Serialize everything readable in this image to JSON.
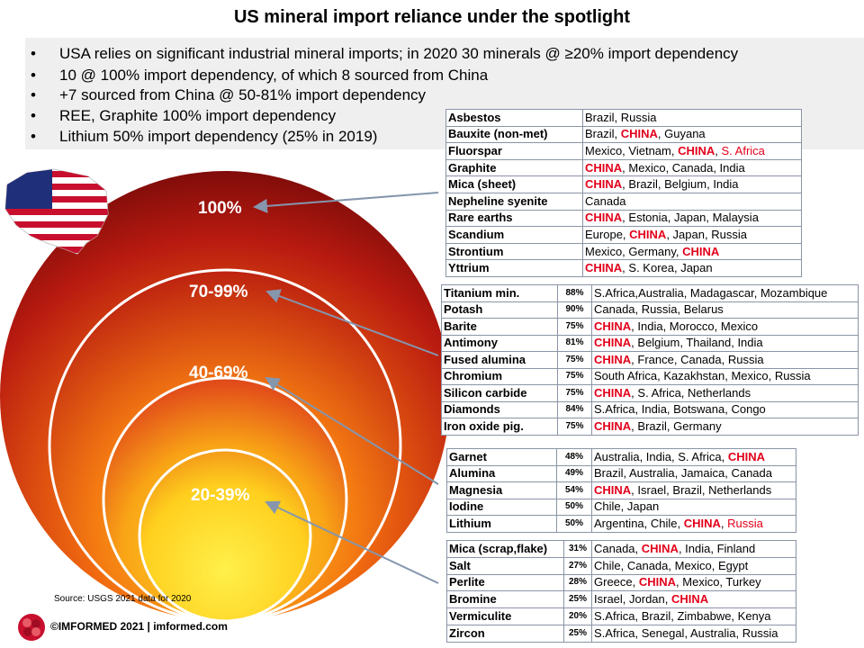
{
  "title": "US mineral import reliance under the spotlight",
  "bullets": [
    {
      "marker": "•",
      "text": "USA relies on significant industrial mineral imports; in 2020 30 minerals @ ≥20% import dependency"
    },
    {
      "marker": "•",
      "text": "10 @ 100% import dependency, of which 8 sourced from China"
    },
    {
      "marker": "•",
      "text": "+7 sourced from China @ 50-81% import dependency"
    },
    {
      "marker": "•",
      "text": "REE, Graphite 100% import dependency"
    },
    {
      "marker": "•",
      "text": "Lithium 50% import dependency (25% in 2019)"
    }
  ],
  "levels": [
    "100%",
    "70-99%",
    "40-69%",
    "20-39%"
  ],
  "colors": {
    "china_red": "#e2001a",
    "ring_outer": "#8a0a0a",
    "ring_inner": "#ffd21a",
    "table_border": "#8a94a6"
  },
  "tables": [
    {
      "rows": [
        {
          "name": "Asbestos",
          "sources": [
            {
              "t": "Brazil, Russia",
              "s": ""
            }
          ]
        },
        {
          "name": "Bauxite (non-met)",
          "sources": [
            {
              "t": "Brazil, ",
              "s": ""
            },
            {
              "t": "CHINA",
              "s": "cn"
            },
            {
              "t": ", Guyana",
              "s": ""
            }
          ]
        },
        {
          "name": "Fluorspar",
          "sources": [
            {
              "t": "Mexico, Vietnam, ",
              "s": ""
            },
            {
              "t": "CHINA",
              "s": "cn"
            },
            {
              "t": ", ",
              "s": ""
            },
            {
              "t": "S. Africa",
              "s": "rd"
            }
          ]
        },
        {
          "name": "Graphite",
          "sources": [
            {
              "t": "CHINA",
              "s": "cn"
            },
            {
              "t": ", Mexico, Canada, India",
              "s": ""
            }
          ]
        },
        {
          "name": "Mica (sheet)",
          "sources": [
            {
              "t": "CHINA",
              "s": "cn"
            },
            {
              "t": ", Brazil, Belgium, India",
              "s": ""
            }
          ]
        },
        {
          "name": "Nepheline syenite",
          "sources": [
            {
              "t": "Canada",
              "s": ""
            }
          ]
        },
        {
          "name": "Rare earths",
          "sources": [
            {
              "t": "CHINA",
              "s": "cn"
            },
            {
              "t": ", Estonia, Japan, Malaysia",
              "s": ""
            }
          ]
        },
        {
          "name": "Scandium",
          "sources": [
            {
              "t": "Europe, ",
              "s": ""
            },
            {
              "t": "CHINA",
              "s": "cn"
            },
            {
              "t": ", Japan, Russia",
              "s": ""
            }
          ]
        },
        {
          "name": "Strontium",
          "sources": [
            {
              "t": "Mexico, Germany, ",
              "s": ""
            },
            {
              "t": "CHINA",
              "s": "cn"
            }
          ]
        },
        {
          "name": "Yttrium",
          "sources": [
            {
              "t": "CHINA",
              "s": "cn"
            },
            {
              "t": ", S. Korea, Japan",
              "s": ""
            }
          ]
        }
      ]
    },
    {
      "rows": [
        {
          "name": "Titanium min.",
          "pct": "88%",
          "sources": [
            {
              "t": "S.Africa,Australia, Madagascar, Mozambique",
              "s": ""
            }
          ]
        },
        {
          "name": "Potash",
          "pct": "90%",
          "sources": [
            {
              "t": "Canada, Russia, Belarus",
              "s": ""
            }
          ]
        },
        {
          "name": "Barite",
          "pct": "75%",
          "sources": [
            {
              "t": "CHINA",
              "s": "cn"
            },
            {
              "t": ", India, Morocco, Mexico",
              "s": ""
            }
          ]
        },
        {
          "name": "Antimony",
          "pct": "81%",
          "sources": [
            {
              "t": "CHINA",
              "s": "cn"
            },
            {
              "t": ", Belgium, Thailand, India",
              "s": ""
            }
          ]
        },
        {
          "name": "Fused alumina",
          "pct": "75%",
          "sources": [
            {
              "t": "CHINA",
              "s": "cn"
            },
            {
              "t": ", France, Canada, Russia",
              "s": ""
            }
          ]
        },
        {
          "name": "Chromium",
          "pct": "75%",
          "sources": [
            {
              "t": "South Africa, Kazakhstan, Mexico, Russia",
              "s": ""
            }
          ]
        },
        {
          "name": "Silicon carbide",
          "pct": "75%",
          "sources": [
            {
              "t": "CHINA",
              "s": "cn"
            },
            {
              "t": ", S. Africa, Netherlands",
              "s": ""
            }
          ]
        },
        {
          "name": "Diamonds",
          "pct": "84%",
          "sources": [
            {
              "t": "S.Africa, India, Botswana, Congo",
              "s": ""
            }
          ]
        },
        {
          "name": "Iron oxide pig.",
          "pct": "75%",
          "sources": [
            {
              "t": "CHINA",
              "s": "cn"
            },
            {
              "t": ", Brazil, Germany",
              "s": ""
            }
          ]
        }
      ]
    },
    {
      "rows": [
        {
          "name": "Garnet",
          "pct": "48%",
          "sources": [
            {
              "t": "Australia, India, S. Africa, ",
              "s": ""
            },
            {
              "t": "CHINA",
              "s": "cn"
            }
          ]
        },
        {
          "name": "Alumina",
          "pct": "49%",
          "sources": [
            {
              "t": "Brazil, Australia, Jamaica, Canada",
              "s": ""
            }
          ]
        },
        {
          "name": "Magnesia",
          "pct": "54%",
          "sources": [
            {
              "t": "CHINA",
              "s": "cn"
            },
            {
              "t": ", Israel, Brazil, Netherlands",
              "s": ""
            }
          ]
        },
        {
          "name": "Iodine",
          "pct": "50%",
          "sources": [
            {
              "t": "Chile, Japan",
              "s": ""
            }
          ]
        },
        {
          "name": "Lithium",
          "pct": "50%",
          "sources": [
            {
              "t": "Argentina, Chile, ",
              "s": ""
            },
            {
              "t": "CHINA",
              "s": "cn"
            },
            {
              "t": ", ",
              "s": ""
            },
            {
              "t": "Russia",
              "s": "rd"
            }
          ]
        }
      ]
    },
    {
      "rows": [
        {
          "name": "Mica (scrap,flake)",
          "pct": "31%",
          "sources": [
            {
              "t": "Canada, ",
              "s": ""
            },
            {
              "t": "CHINA",
              "s": "cn"
            },
            {
              "t": ", India, Finland",
              "s": ""
            }
          ]
        },
        {
          "name": "Salt",
          "pct": "27%",
          "sources": [
            {
              "t": "Chile, Canada, Mexico, Egypt",
              "s": ""
            }
          ]
        },
        {
          "name": "Perlite",
          "pct": "28%",
          "sources": [
            {
              "t": "Greece, ",
              "s": ""
            },
            {
              "t": "CHINA",
              "s": "cn"
            },
            {
              "t": ", Mexico, Turkey",
              "s": ""
            }
          ]
        },
        {
          "name": "Bromine",
          "pct": "25%",
          "sources": [
            {
              "t": "Israel, Jordan, ",
              "s": ""
            },
            {
              "t": "CHINA",
              "s": "cn"
            }
          ]
        },
        {
          "name": "Vermiculite",
          "pct": "20%",
          "sources": [
            {
              "t": "S.Africa, Brazil, Zimbabwe, Kenya",
              "s": ""
            }
          ]
        },
        {
          "name": "Zircon",
          "pct": "25%",
          "sources": [
            {
              "t": "S.Africa, Senegal, Australia, Russia",
              "s": ""
            }
          ]
        }
      ]
    }
  ],
  "source_note": "Source: USGS 2021 data for 2020",
  "copyright": "©IMFORMED 2021  | imformed.com"
}
